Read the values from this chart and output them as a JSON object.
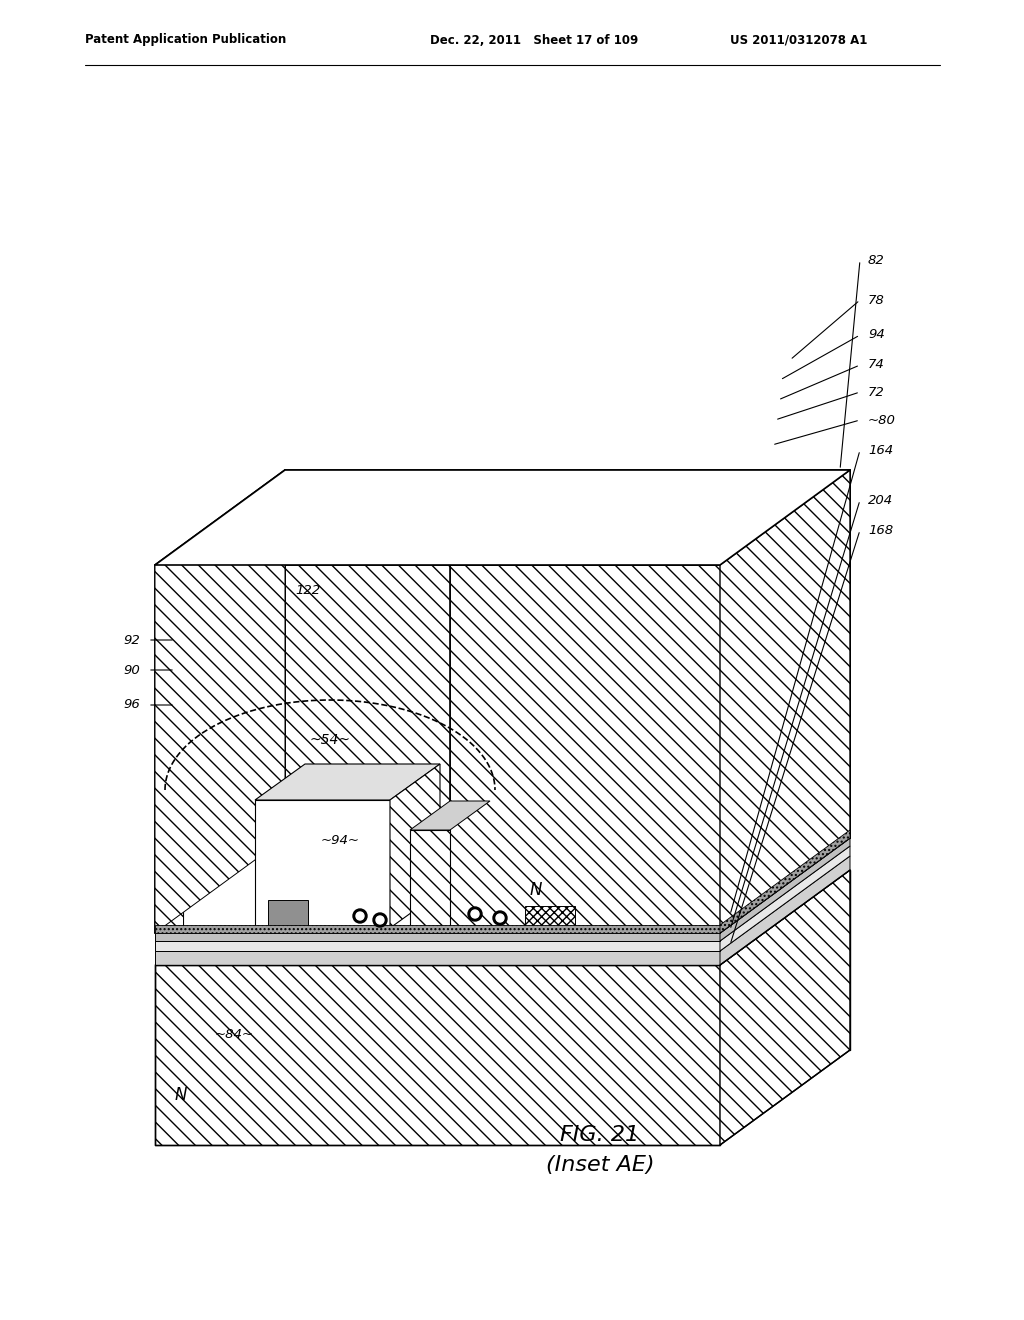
{
  "bg_color": "#ffffff",
  "header_left": "Patent Application Publication",
  "header_mid": "Dec. 22, 2011   Sheet 17 of 109",
  "header_right": "US 2011/0312078 A1",
  "fig_label": "FIG. 21",
  "fig_sublabel": "(Inset AE)",
  "hatch_density": "////",
  "hatch_substrate": "\\\\\\\\"
}
